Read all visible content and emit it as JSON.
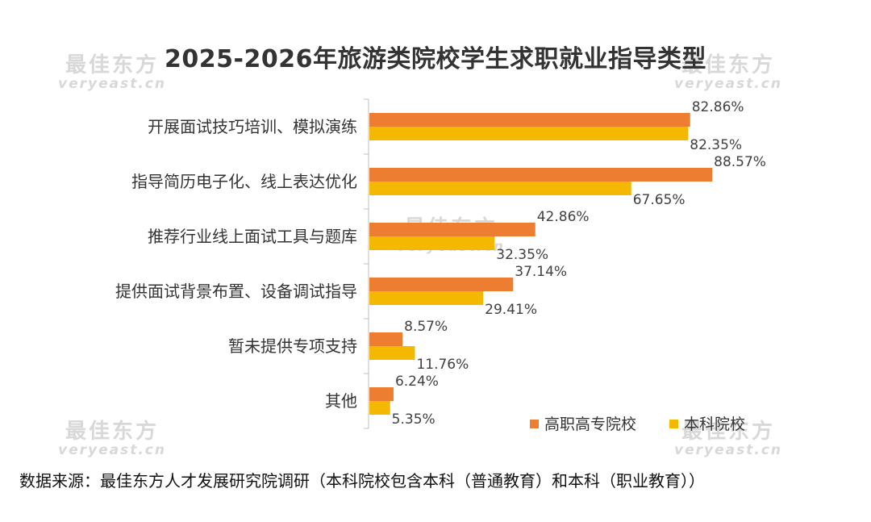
{
  "watermark": {
    "cn": "最佳东方",
    "en": "veryeast.cn"
  },
  "source": "数据来源：最佳东方人才发展研究院调研（本科院校包含本科（普通教育）和本科（职业教育））",
  "chart_data": {
    "type": "bar",
    "orientation": "horizontal",
    "title": "2025-2026年旅游类院校学生求职就业指导类型",
    "categories": [
      "开展面试技巧培训、模拟演练",
      "指导简历电子化、线上表达优化",
      "推荐行业线上面试工具与题库",
      "提供面试背景布置、设备调试指导",
      "暂未提供专项支持",
      "其他"
    ],
    "series": [
      {
        "name": "高职高专院校",
        "color": "#ED7D31",
        "values": [
          82.86,
          88.57,
          42.86,
          37.14,
          8.57,
          6.24
        ],
        "labels": [
          "82.86%",
          "88.57%",
          "42.86%",
          "37.14%",
          "8.57%",
          "6.24%"
        ]
      },
      {
        "name": "本科院校",
        "color": "#F5B800",
        "values": [
          82.35,
          67.65,
          32.35,
          29.41,
          11.76,
          5.35
        ],
        "labels": [
          "82.35%",
          "67.65%",
          "32.35%",
          "29.41%",
          "11.76%",
          "5.35%"
        ]
      }
    ],
    "xlim": [
      0,
      100
    ],
    "legend": "bottom-right",
    "grid": false
  }
}
